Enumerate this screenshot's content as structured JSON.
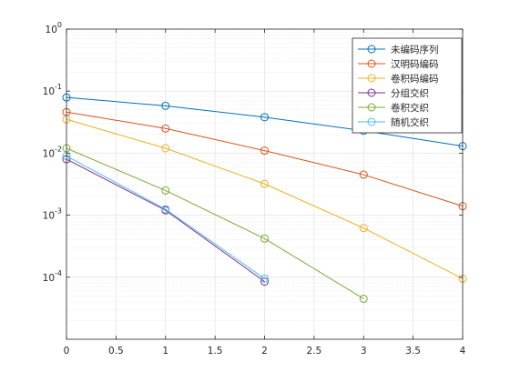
{
  "chart_data": {
    "type": "line",
    "y_scale": "log",
    "xlim": [
      0,
      4
    ],
    "ylim": [
      1e-05,
      1
    ],
    "grid": true,
    "minor_grid": true,
    "legend_position": "top-right",
    "x_ticks": [
      0,
      0.5,
      1,
      1.5,
      2,
      2.5,
      3,
      3.5,
      4
    ],
    "x_tick_labels": [
      "0",
      "0.5",
      "1",
      "1.5",
      "2",
      "2.5",
      "3",
      "3.5",
      "4"
    ],
    "y_ticks": [
      0.0001,
      0.001,
      0.01,
      0.1,
      1
    ],
    "y_tick_labels": [
      {
        "base": "10",
        "exp": "-4"
      },
      {
        "base": "10",
        "exp": "-3"
      },
      {
        "base": "10",
        "exp": "-2"
      },
      {
        "base": "10",
        "exp": "-1"
      },
      {
        "base": "10",
        "exp": "0"
      }
    ],
    "series": [
      {
        "name": "未编码序列",
        "color": "#0072BD",
        "x": [
          0,
          1,
          2,
          3,
          4
        ],
        "y": [
          0.079,
          0.058,
          0.038,
          0.023,
          0.013
        ]
      },
      {
        "name": "汉明码编码",
        "color": "#D95319",
        "x": [
          0,
          1,
          2,
          3,
          4
        ],
        "y": [
          0.046,
          0.025,
          0.011,
          0.0045,
          0.0014
        ]
      },
      {
        "name": "卷积码编码",
        "color": "#EDB120",
        "x": [
          0,
          1,
          2,
          3,
          4
        ],
        "y": [
          0.035,
          0.012,
          0.0032,
          0.00062,
          9.5e-05
        ]
      },
      {
        "name": "分组交织",
        "color": "#7E2F8E",
        "x": [
          0,
          1,
          2
        ],
        "y": [
          0.008,
          0.0012,
          8.5e-05
        ]
      },
      {
        "name": "卷积交织",
        "color": "#77AC30",
        "x": [
          0,
          1,
          2,
          3
        ],
        "y": [
          0.012,
          0.0025,
          0.00042,
          4.5e-05
        ]
      },
      {
        "name": "随机交织",
        "color": "#4DBEEE",
        "x": [
          0,
          1,
          2
        ],
        "y": [
          0.009,
          0.00125,
          9.5e-05
        ]
      }
    ]
  }
}
